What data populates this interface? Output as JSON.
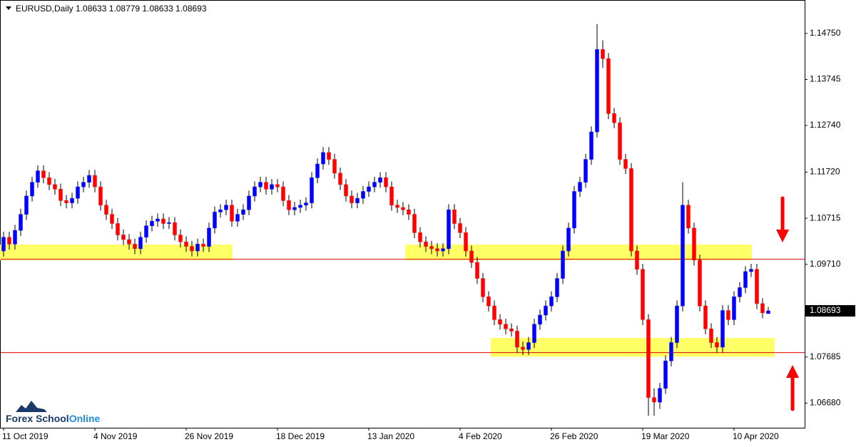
{
  "chart_data": {
    "type": "candlestick",
    "title": "EURUSD,Daily  1.08633 1.08779 1.08633 1.08693",
    "categories": [
      "11 Oct 2019",
      null,
      null,
      null,
      null,
      null,
      null,
      null,
      null,
      null,
      null,
      null,
      null,
      null,
      null,
      null,
      "4 Nov 2019",
      null,
      null,
      null,
      null,
      null,
      null,
      null,
      null,
      null,
      null,
      null,
      null,
      null,
      null,
      null,
      "26 Nov 2019",
      null,
      null,
      null,
      null,
      null,
      null,
      null,
      null,
      null,
      null,
      null,
      null,
      null,
      null,
      null,
      "18 Dec 2019",
      null,
      null,
      null,
      null,
      null,
      null,
      null,
      null,
      null,
      null,
      null,
      null,
      null,
      null,
      null,
      "13 Jan 2020",
      null,
      null,
      null,
      null,
      null,
      null,
      null,
      null,
      null,
      null,
      null,
      null,
      null,
      null,
      null,
      "4 Feb 2020",
      null,
      null,
      null,
      null,
      null,
      null,
      null,
      null,
      null,
      null,
      null,
      null,
      null,
      null,
      null,
      "26 Feb 2020",
      null,
      null,
      null,
      null,
      null,
      null,
      null,
      null,
      null,
      null,
      null,
      null,
      null,
      null,
      null,
      "19 Mar 2020",
      null,
      null,
      null,
      null,
      null,
      null,
      null,
      null,
      null,
      null,
      null,
      null,
      null,
      null,
      null,
      "10 Apr 2020",
      null,
      null,
      null,
      null,
      null,
      null
    ],
    "open": [
      1.1,
      1.103,
      1.1015,
      1.1045,
      1.108,
      1.112,
      1.115,
      1.1175,
      1.116,
      1.1145,
      1.1135,
      1.111,
      1.1105,
      1.1115,
      1.114,
      1.115,
      1.1165,
      1.114,
      1.11,
      1.108,
      1.106,
      1.1035,
      1.1025,
      1.1015,
      1.1005,
      1.103,
      1.1055,
      1.1065,
      1.107,
      1.106,
      1.1062,
      1.1035,
      1.102,
      1.101,
      1.1,
      1.1015,
      1.101,
      1.105,
      1.1085,
      1.109,
      1.11,
      1.1065,
      1.108,
      1.109,
      1.112,
      1.114,
      1.115,
      1.1135,
      1.1145,
      1.114,
      1.111,
      1.109,
      1.1095,
      1.11,
      1.1105,
      1.116,
      1.119,
      1.1215,
      1.12,
      1.117,
      1.1145,
      1.112,
      1.1105,
      1.1115,
      1.113,
      1.114,
      1.115,
      1.116,
      1.114,
      1.11,
      1.1095,
      1.109,
      1.108,
      1.104,
      1.102,
      1.101,
      1.1005,
      1.1,
      1.1005,
      1.109,
      1.106,
      1.104,
      1.1,
      1.0975,
      1.094,
      1.09,
      1.088,
      1.085,
      1.084,
      1.083,
      1.0825,
      1.079,
      1.0785,
      1.08,
      1.084,
      1.086,
      1.088,
      1.09,
      1.094,
      1.1,
      1.105,
      1.113,
      1.115,
      1.12,
      1.126,
      1.144,
      1.142,
      1.13,
      1.128,
      1.12,
      1.118,
      1.1,
      1.096,
      1.085,
      1.068,
      1.067,
      1.07,
      1.076,
      1.08,
      1.088,
      1.11,
      1.105,
      1.098,
      1.088,
      1.083,
      1.08,
      1.079,
      1.087,
      1.085,
      1.09,
      1.092,
      1.0955,
      1.096,
      1.0885,
      1.08633
    ],
    "high": [
      1.1042,
      1.1042,
      1.1057,
      1.1092,
      1.1132,
      1.1162,
      1.1187,
      1.1187,
      1.1172,
      1.1157,
      1.1147,
      1.1122,
      1.1127,
      1.1152,
      1.1162,
      1.1177,
      1.1177,
      1.1152,
      1.1112,
      1.1092,
      1.1072,
      1.1047,
      1.1037,
      1.1027,
      1.1042,
      1.1067,
      1.1077,
      1.1082,
      1.1082,
      1.1074,
      1.1074,
      1.1047,
      1.1032,
      1.1022,
      1.1027,
      1.1027,
      1.1062,
      1.1097,
      1.1102,
      1.1112,
      1.1112,
      1.1092,
      1.1102,
      1.1132,
      1.1152,
      1.1162,
      1.1162,
      1.1157,
      1.1157,
      1.1152,
      1.1122,
      1.1107,
      1.1112,
      1.1117,
      1.1172,
      1.1202,
      1.1227,
      1.1227,
      1.1212,
      1.1182,
      1.1157,
      1.1132,
      1.1127,
      1.1142,
      1.1152,
      1.1162,
      1.1172,
      1.1172,
      1.1152,
      1.1112,
      1.1107,
      1.1102,
      1.1092,
      1.1052,
      1.1032,
      1.1022,
      1.1017,
      1.1017,
      1.1102,
      1.1102,
      1.1072,
      1.1052,
      1.1012,
      1.0987,
      1.0952,
      1.0912,
      1.0892,
      1.0862,
      1.0852,
      1.0842,
      1.0837,
      1.0802,
      1.0812,
      1.0852,
      1.0872,
      1.0892,
      1.0912,
      1.0952,
      1.1012,
      1.1062,
      1.1142,
      1.1162,
      1.1212,
      1.1272,
      1.1495,
      1.146,
      1.1432,
      1.1312,
      1.1292,
      1.1212,
      1.1192,
      1.1012,
      1.0972,
      1.0862,
      1.07,
      1.0712,
      1.0772,
      1.0812,
      1.0892,
      1.115,
      1.1112,
      1.1062,
      1.0992,
      1.0892,
      1.0842,
      1.0812,
      1.0882,
      1.0882,
      1.0912,
      1.0932,
      1.0967,
      1.0972,
      1.0972,
      1.0897,
      1.08779
    ],
    "low": [
      1.0988,
      1.1003,
      1.1003,
      1.1033,
      1.1068,
      1.1108,
      1.1138,
      1.1148,
      1.1133,
      1.1123,
      1.1098,
      1.1093,
      1.1093,
      1.1103,
      1.1128,
      1.1138,
      1.1128,
      1.1088,
      1.1068,
      1.1048,
      1.1023,
      1.1013,
      1.1003,
      1.0993,
      1.0993,
      1.1018,
      1.1043,
      1.1053,
      1.1048,
      1.1048,
      1.1023,
      1.1008,
      1.0998,
      1.0988,
      1.0988,
      1.0998,
      1.0998,
      1.1038,
      1.1073,
      1.1078,
      1.1053,
      1.1053,
      1.1068,
      1.1078,
      1.1108,
      1.1128,
      1.1123,
      1.1123,
      1.1128,
      1.1098,
      1.1078,
      1.1078,
      1.1083,
      1.1088,
      1.1093,
      1.1148,
      1.1178,
      1.1188,
      1.1158,
      1.1133,
      1.1108,
      1.1093,
      1.1093,
      1.1103,
      1.1118,
      1.1128,
      1.1138,
      1.1128,
      1.1088,
      1.1083,
      1.1078,
      1.1068,
      1.1028,
      1.1008,
      1.0998,
      1.0993,
      1.0988,
      1.0988,
      1.0993,
      1.1048,
      1.1028,
      1.0988,
      1.0963,
      1.0928,
      1.0888,
      1.0868,
      1.0838,
      1.0828,
      1.0818,
      1.0813,
      1.0778,
      1.0773,
      1.0773,
      1.0788,
      1.0828,
      1.0848,
      1.0868,
      1.0888,
      1.0928,
      1.0988,
      1.1038,
      1.1118,
      1.1138,
      1.1188,
      1.1248,
      1.14,
      1.1288,
      1.1268,
      1.1188,
      1.1168,
      1.0988,
      1.0948,
      1.0838,
      1.064,
      1.064,
      1.0655,
      1.0688,
      1.0748,
      1.0788,
      1.0868,
      1.1038,
      1.0968,
      1.0868,
      1.0818,
      1.0788,
      1.0778,
      1.0778,
      1.0838,
      1.0838,
      1.0888,
      1.0908,
      1.0943,
      1.0873,
      1.0853,
      1.08633
    ],
    "close": [
      1.103,
      1.1015,
      1.1045,
      1.108,
      1.112,
      1.115,
      1.1175,
      1.116,
      1.1145,
      1.1135,
      1.111,
      1.1105,
      1.1115,
      1.114,
      1.115,
      1.1165,
      1.114,
      1.11,
      1.108,
      1.106,
      1.1035,
      1.1025,
      1.1015,
      1.1005,
      1.103,
      1.1055,
      1.1065,
      1.107,
      1.106,
      1.1062,
      1.1035,
      1.102,
      1.101,
      1.1,
      1.1015,
      1.101,
      1.105,
      1.1085,
      1.109,
      1.11,
      1.1065,
      1.108,
      1.109,
      1.112,
      1.114,
      1.115,
      1.1135,
      1.1145,
      1.114,
      1.111,
      1.109,
      1.1095,
      1.11,
      1.1105,
      1.116,
      1.119,
      1.1215,
      1.12,
      1.117,
      1.1145,
      1.112,
      1.1105,
      1.1115,
      1.113,
      1.114,
      1.115,
      1.116,
      1.114,
      1.11,
      1.1095,
      1.109,
      1.108,
      1.104,
      1.102,
      1.101,
      1.1005,
      1.1,
      1.1005,
      1.109,
      1.106,
      1.104,
      1.1,
      1.0975,
      1.094,
      1.09,
      1.088,
      1.085,
      1.084,
      1.083,
      1.0825,
      1.079,
      1.0785,
      1.08,
      1.084,
      1.086,
      1.088,
      1.09,
      1.094,
      1.1,
      1.105,
      1.113,
      1.115,
      1.12,
      1.126,
      1.144,
      1.142,
      1.13,
      1.128,
      1.12,
      1.118,
      1.1,
      1.096,
      1.085,
      1.068,
      1.067,
      1.07,
      1.076,
      1.08,
      1.088,
      1.11,
      1.105,
      1.098,
      1.088,
      1.083,
      1.08,
      1.079,
      1.087,
      1.085,
      1.09,
      1.092,
      1.0955,
      1.096,
      1.0885,
      1.0865,
      1.08693
    ],
    "up_color": "#0000ff",
    "down_color": "#ff0000",
    "ylim": [
      1.0614,
      1.1548
    ],
    "yticks": [
      {
        "value": 1.0668,
        "label": "1.06680"
      },
      1.07685,
      {
        "value": 1.0971,
        "label": "1.09710"
      },
      1.10715,
      {
        "value": 1.1172,
        "label": "1.11720"
      },
      {
        "value": 1.1274,
        "label": "1.12740"
      },
      1.13745,
      {
        "value": 1.1475,
        "label": "1.14750"
      }
    ],
    "grid": false,
    "last_price": 1.08693,
    "levels": [
      1.0982,
      1.0778
    ],
    "level_color": "#e00000",
    "zones": [
      {
        "start": 0,
        "end": 40,
        "low": 1.098,
        "high": 1.1014
      },
      {
        "start": 71,
        "end": 131,
        "low": 1.098,
        "high": 1.1014
      },
      {
        "start": 86,
        "end": 135,
        "low": 1.0769,
        "high": 1.081
      }
    ],
    "zone_color": "#ffff66",
    "brand": {
      "name": "Forex School",
      "suffix": "Online"
    }
  }
}
